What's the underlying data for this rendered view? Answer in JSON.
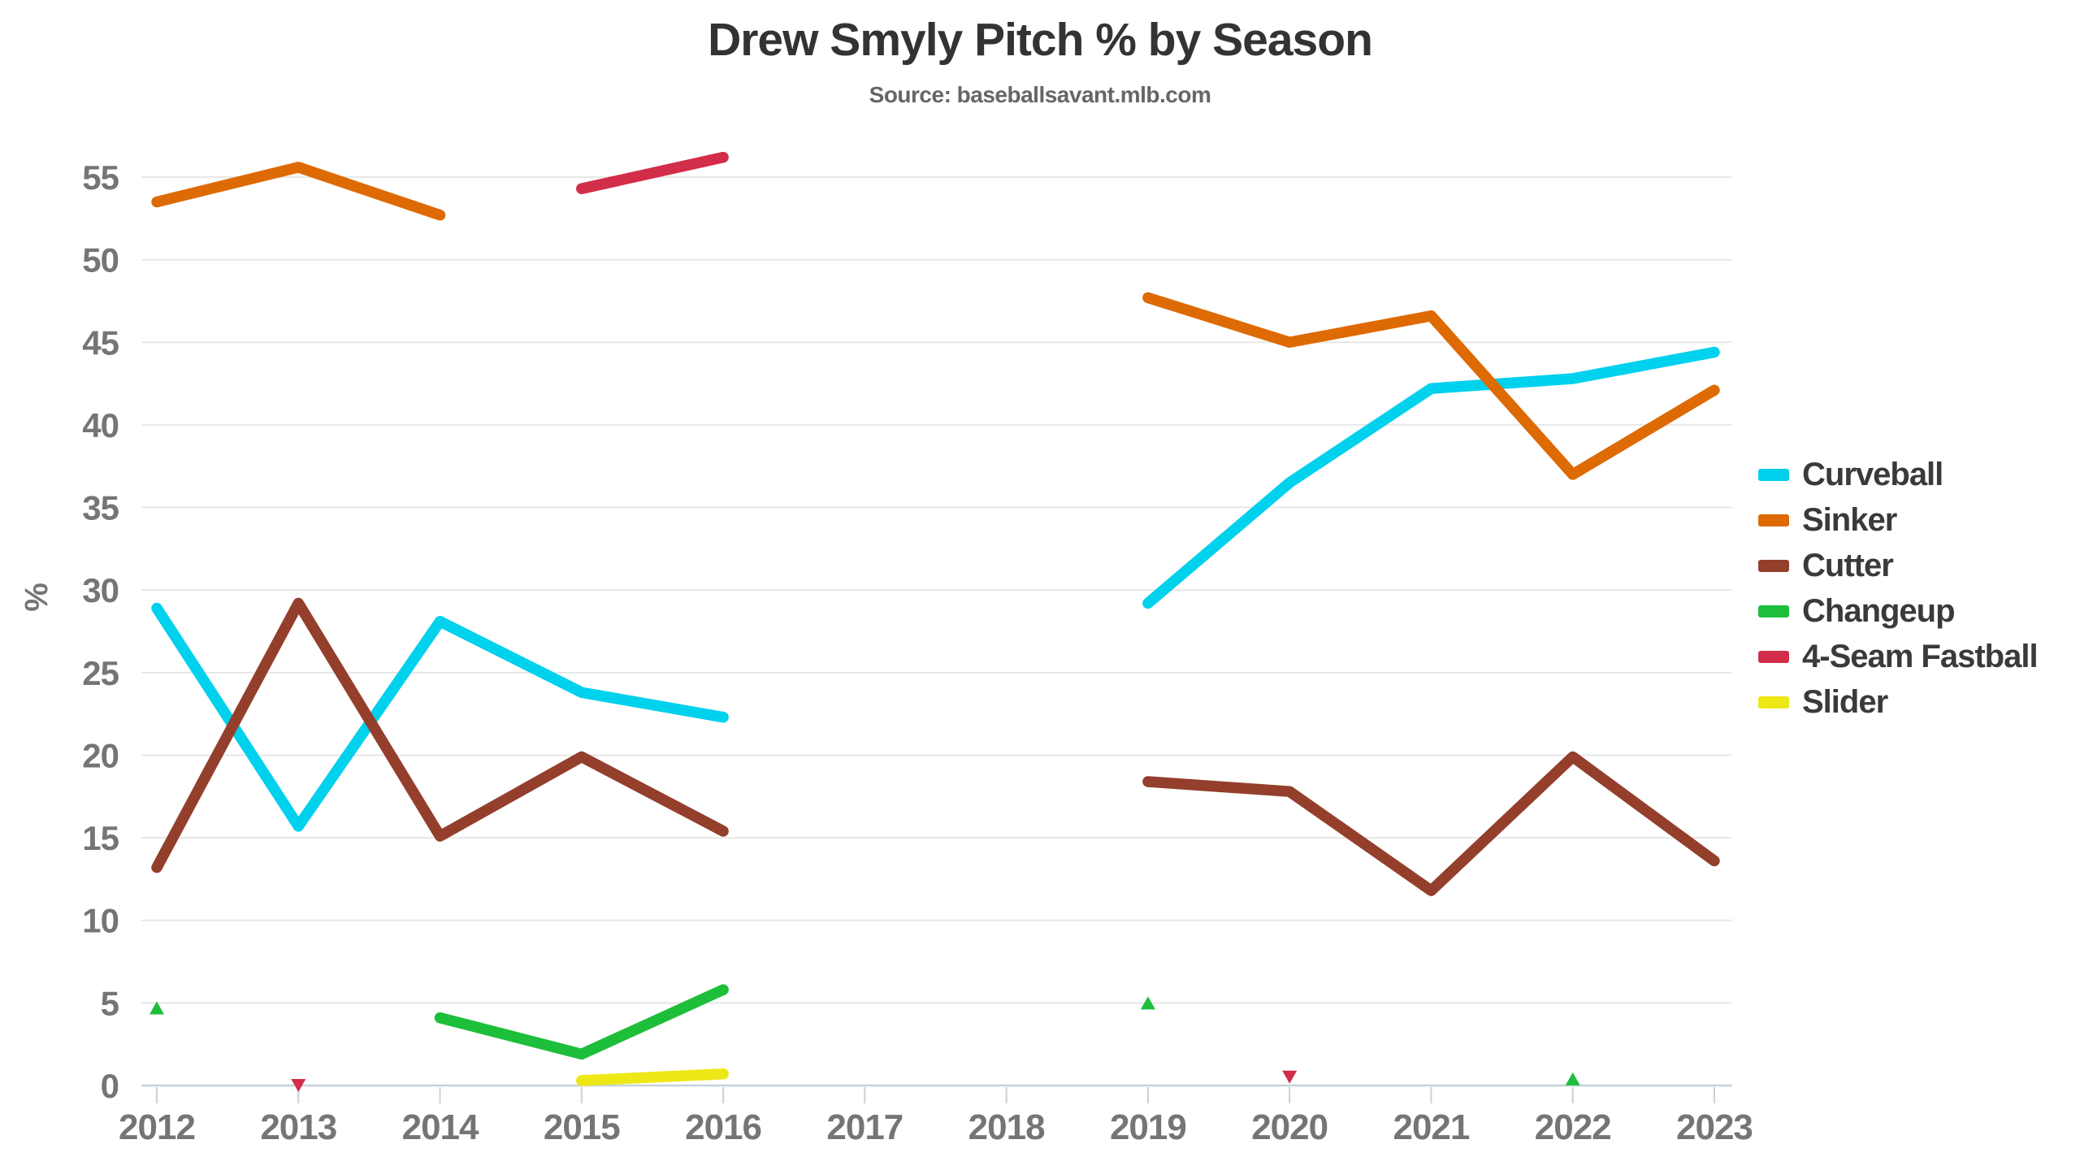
{
  "page": {
    "background": "#ffffff"
  },
  "chart_data": {
    "type": "line",
    "title": "Drew Smyly Pitch % by Season",
    "subtitle": "Source: baseballsavant.mlb.com",
    "xlabel": "",
    "ylabel": "%",
    "ylim": [
      0,
      55
    ],
    "yticks": [
      0,
      5,
      10,
      15,
      20,
      25,
      30,
      35,
      40,
      45,
      50,
      55
    ],
    "grid": "horizontal",
    "legend_position": "right",
    "categories": [
      "2012",
      "2013",
      "2014",
      "2015",
      "2016",
      "2017",
      "2018",
      "2019",
      "2020",
      "2021",
      "2022",
      "2023"
    ],
    "series": [
      {
        "name": "Curveball",
        "color": "#00D1ED",
        "marker": "triangle-up",
        "values": [
          28.9,
          15.7,
          28.1,
          23.8,
          22.3,
          null,
          null,
          29.2,
          36.5,
          42.2,
          42.8,
          44.4
        ]
      },
      {
        "name": "Sinker",
        "color": "#DE6A04",
        "marker": "triangle-up",
        "values": [
          53.5,
          55.6,
          52.7,
          null,
          null,
          null,
          null,
          47.7,
          45.0,
          46.6,
          37.0,
          42.1
        ]
      },
      {
        "name": "Cutter",
        "color": "#933F2C",
        "marker": "triangle-up",
        "values": [
          13.2,
          29.2,
          15.1,
          19.9,
          15.4,
          null,
          null,
          18.4,
          17.8,
          11.8,
          19.9,
          13.6
        ]
      },
      {
        "name": "Changeup",
        "color": "#1DBE3A",
        "marker": "triangle-up",
        "values": [
          4.6,
          null,
          4.1,
          1.9,
          5.8,
          null,
          null,
          4.9,
          null,
          null,
          0.3,
          null
        ]
      },
      {
        "name": "4-Seam Fastball",
        "color": "#D22D49",
        "marker": "triangle-down",
        "values": [
          null,
          0.1,
          null,
          54.3,
          56.2,
          null,
          null,
          null,
          0.6,
          null,
          null,
          null
        ]
      },
      {
        "name": "Slider",
        "color": "#EEE716",
        "marker": "triangle-up",
        "values": [
          null,
          null,
          null,
          0.3,
          0.7,
          null,
          null,
          null,
          null,
          null,
          null,
          null
        ]
      }
    ],
    "colors": {
      "grid": "#e7e7e7",
      "axis": "#c6d2dc",
      "tick_label": "#757575",
      "title": "#333333",
      "subtitle": "#666666",
      "legend_text": "#3a3a3a"
    }
  }
}
